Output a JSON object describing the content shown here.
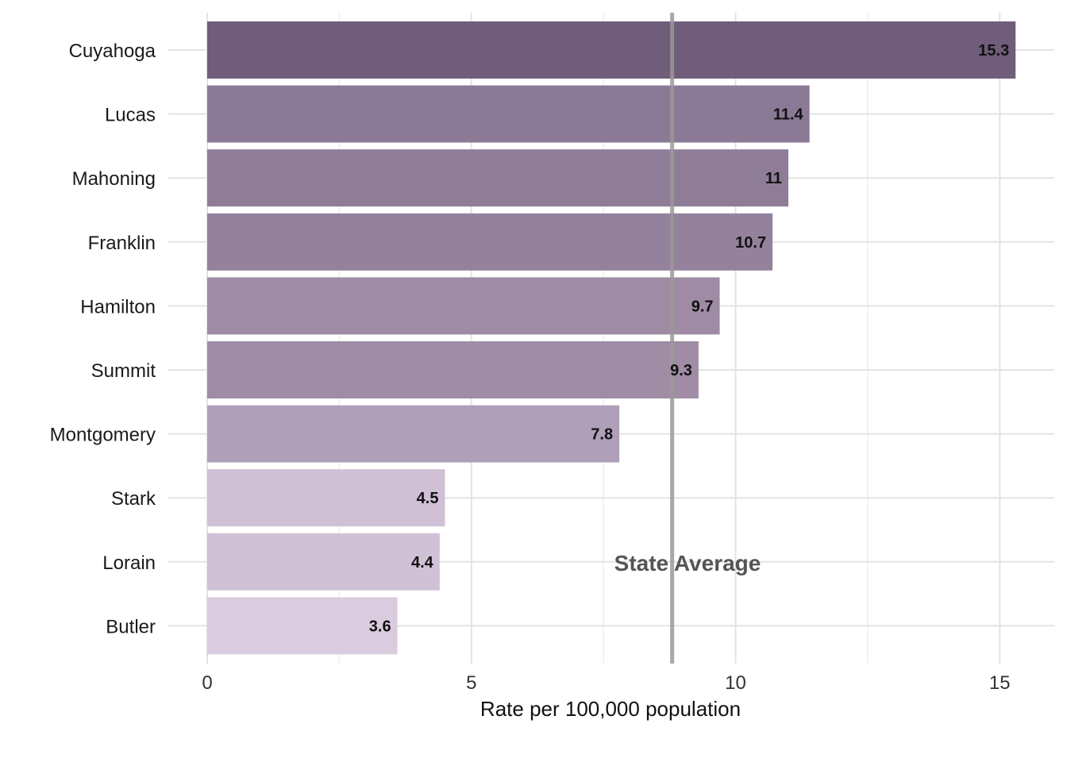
{
  "chart_data": {
    "type": "bar",
    "orientation": "horizontal",
    "categories": [
      "Cuyahoga",
      "Lucas",
      "Mahoning",
      "Franklin",
      "Hamilton",
      "Summit",
      "Montgomery",
      "Stark",
      "Lorain",
      "Butler"
    ],
    "values": [
      15.3,
      11.4,
      11,
      10.7,
      9.7,
      9.3,
      7.8,
      4.5,
      4.4,
      3.6
    ],
    "value_labels": [
      "15.3",
      "11.4",
      "11",
      "10.7",
      "9.7",
      "9.3",
      "7.8",
      "4.5",
      "4.4",
      "3.6"
    ],
    "bar_colors": [
      "#6f5d79",
      "#8b7a95",
      "#8f7d98",
      "#94829c",
      "#9f8ba3",
      "#a08ca4",
      "#b09fb8",
      "#cfc0d6",
      "#d0c1d7",
      "#dacbde"
    ],
    "xlabel": "Rate per 100,000 population",
    "ylabel": "",
    "title": "",
    "xlim": [
      0,
      15.8
    ],
    "xticks": [
      0,
      5,
      10,
      15
    ],
    "x_tick_labels": [
      "0",
      "5",
      "10",
      "15"
    ],
    "grid": true,
    "reference_line": {
      "value": 8.8,
      "label": "State Average",
      "color": "#999999"
    }
  }
}
